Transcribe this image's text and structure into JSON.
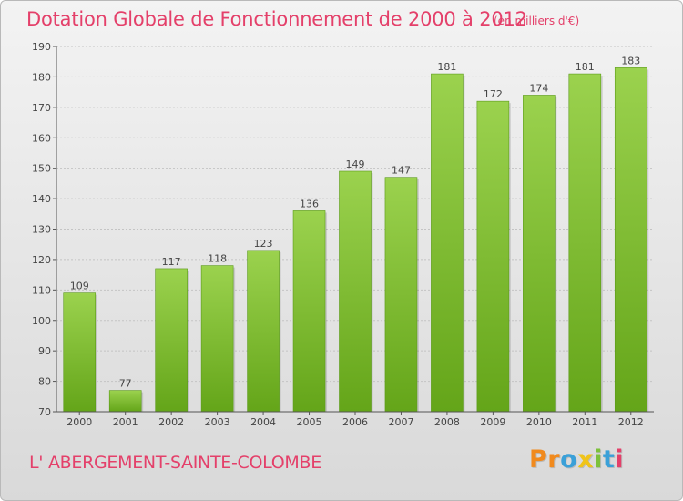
{
  "chart_data": {
    "type": "bar",
    "title": "Dotation Globale de Fonctionnement de 2000 à 2012",
    "subtitle": "(en milliers d'€)",
    "xlabel": "",
    "ylabel": "",
    "categories": [
      "2000",
      "2001",
      "2002",
      "2003",
      "2004",
      "2005",
      "2006",
      "2007",
      "2008",
      "2009",
      "2010",
      "2011",
      "2012"
    ],
    "values": [
      109,
      77,
      117,
      118,
      123,
      136,
      149,
      147,
      181,
      172,
      174,
      181,
      183
    ],
    "ylim": [
      70,
      190
    ],
    "yticks": [
      70,
      80,
      90,
      100,
      110,
      120,
      130,
      140,
      150,
      160,
      170,
      180,
      190
    ],
    "grid": true,
    "bar_color": "#7cc13a"
  },
  "footer": {
    "commune": "L' ABERGEMENT-SAINTE-COLOMBE"
  },
  "logo": {
    "letters": [
      "P",
      "r",
      "o",
      "x",
      "i",
      "t",
      "i"
    ],
    "colors": [
      "#f18a1d",
      "#f18a1d",
      "#3aa0d8",
      "#f0c419",
      "#7cc13a",
      "#3aa0d8",
      "#e4406a"
    ]
  }
}
